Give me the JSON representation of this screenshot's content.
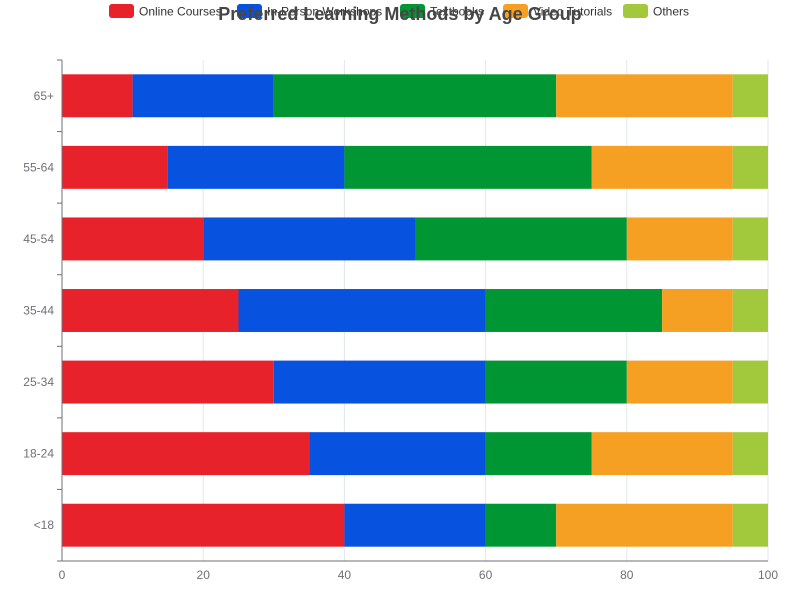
{
  "chart_data": {
    "type": "bar",
    "orientation": "horizontal",
    "stacked": true,
    "title": "Preferred Learning Methods by Age Group",
    "categories": [
      "<18",
      "18-24",
      "25-34",
      "35-44",
      "45-54",
      "55-64",
      "65+"
    ],
    "series": [
      {
        "name": "Online Courses",
        "color": "#e8222a",
        "values": [
          40,
          35,
          30,
          25,
          20,
          15,
          10
        ]
      },
      {
        "name": "In-Person Workshops",
        "color": "#0752de",
        "values": [
          20,
          25,
          30,
          35,
          30,
          25,
          20
        ]
      },
      {
        "name": "Textbooks",
        "color": "#009634",
        "values": [
          10,
          15,
          20,
          25,
          30,
          35,
          40
        ]
      },
      {
        "name": "Video Tutorials",
        "color": "#f6a023",
        "values": [
          25,
          20,
          15,
          10,
          15,
          20,
          25
        ]
      },
      {
        "name": "Others",
        "color": "#a2c83b",
        "values": [
          5,
          5,
          5,
          5,
          5,
          5,
          5
        ]
      }
    ],
    "xlim": [
      0,
      100
    ],
    "x_ticks": [
      0,
      20,
      40,
      60,
      80,
      100
    ],
    "xlabel": "",
    "ylabel": "",
    "grid": true,
    "legend_position": "top"
  }
}
